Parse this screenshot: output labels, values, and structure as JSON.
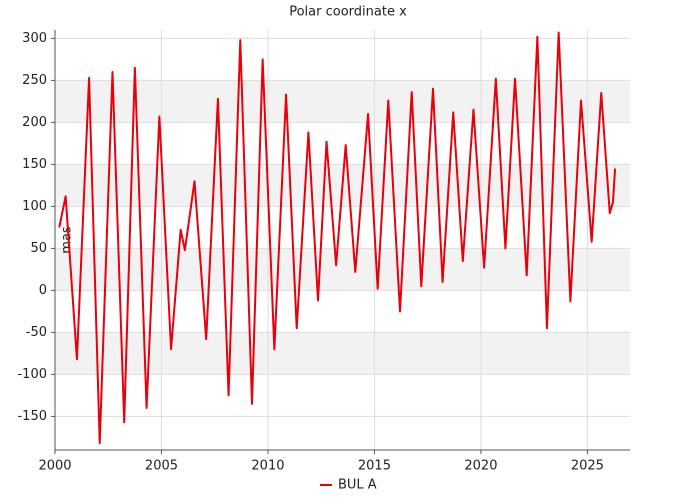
{
  "chart_data": {
    "type": "line",
    "title": "Polar coordinate x",
    "y_label": "mas",
    "x": [
      2000.2,
      2000.5,
      2001.03,
      2001.6,
      2002.1,
      2002.7,
      2003.25,
      2003.75,
      2004.3,
      2004.9,
      2005.45,
      2005.9,
      2006.1,
      2006.55,
      2007.1,
      2007.65,
      2008.15,
      2008.7,
      2009.25,
      2009.75,
      2010.3,
      2010.85,
      2011.35,
      2011.9,
      2012.35,
      2012.75,
      2013.2,
      2013.65,
      2014.1,
      2014.7,
      2015.15,
      2015.65,
      2016.2,
      2016.75,
      2017.2,
      2017.75,
      2018.2,
      2018.7,
      2019.15,
      2019.65,
      2020.15,
      2020.7,
      2021.15,
      2021.6,
      2022.15,
      2022.65,
      2023.1,
      2023.65,
      2024.2,
      2024.7,
      2025.2,
      2025.65,
      2026.05,
      2026.2,
      2026.3
    ],
    "series": [
      {
        "name": "BUL A",
        "color": "#e8000b",
        "values": [
          75,
          112,
          -82,
          253,
          -182,
          260,
          -157,
          265,
          -140,
          207,
          -70,
          72,
          48,
          130,
          -58,
          228,
          -125,
          298,
          -135,
          275,
          -70,
          233,
          -45,
          188,
          -12,
          177,
          30,
          173,
          22,
          210,
          2,
          226,
          -25,
          236,
          5,
          240,
          10,
          212,
          35,
          215,
          27,
          252,
          50,
          252,
          18,
          302,
          -45,
          307,
          -13,
          226,
          58,
          235,
          92,
          105,
          145
        ]
      }
    ],
    "xlim": [
      2000,
      2027
    ],
    "xticks": [
      2000,
      2005,
      2010,
      2015,
      2020,
      2025
    ],
    "ylim": [
      -190,
      310
    ],
    "yticks": [
      -150,
      -100,
      -50,
      0,
      50,
      100,
      150,
      200,
      250,
      300
    ],
    "grid": true,
    "legend": "bottom"
  }
}
